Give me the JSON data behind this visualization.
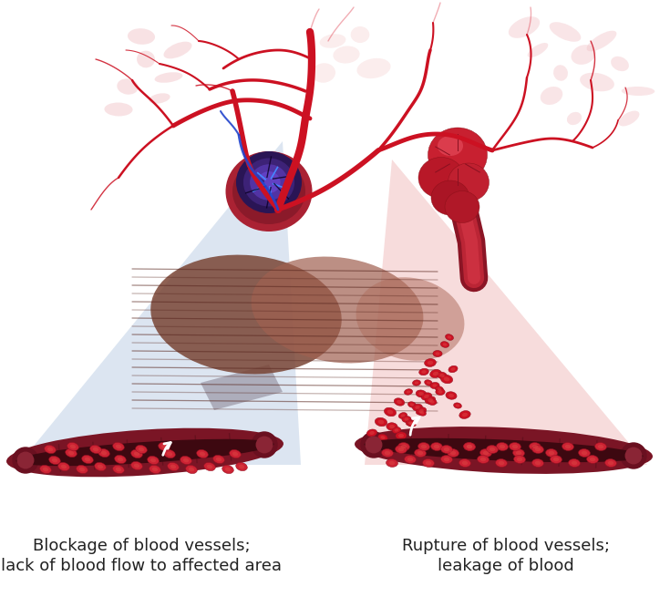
{
  "background_color": "#ffffff",
  "left_label_line1": "Blockage of blood vessels;",
  "left_label_line2": "lack of blood flow to affected area",
  "right_label_line1": "Rupture of blood vessels;",
  "right_label_line2": "leakage of blood",
  "label_fontsize": 13,
  "label_color": "#222222",
  "fig_width": 7.35,
  "fig_height": 6.66,
  "dpi": 100
}
